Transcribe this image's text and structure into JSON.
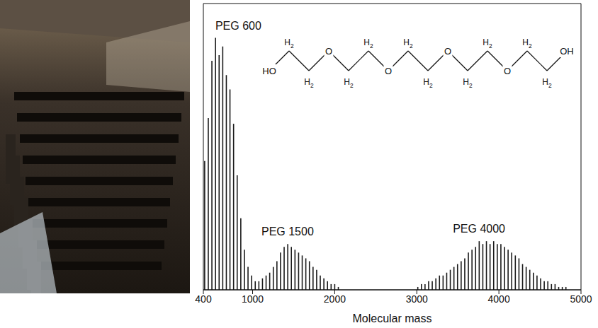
{
  "chart_data": {
    "type": "bar",
    "x_label": "Molecular mass",
    "xlim": [
      400,
      5000
    ],
    "xticks": [
      400,
      1000,
      2000,
      3000,
      4000,
      5000
    ],
    "ylim": [
      0,
      100
    ],
    "tick_labels": "x",
    "series": [
      {
        "name": "PEG 600",
        "color": "#1a1a1a",
        "x": [
          414,
          458,
          502,
          546,
          590,
          634,
          678,
          722,
          766,
          810,
          854,
          898,
          942,
          986,
          1030
        ],
        "values": [
          45,
          60,
          80,
          88,
          82,
          85,
          75,
          70,
          58,
          40,
          25,
          14,
          8,
          5,
          3
        ]
      },
      {
        "name": "PEG 1500",
        "color": "#1a1a1a",
        "x": [
          1074,
          1118,
          1162,
          1206,
          1250,
          1294,
          1338,
          1382,
          1426,
          1470,
          1514,
          1558,
          1602,
          1646,
          1690,
          1734,
          1778,
          1822,
          1866,
          1910,
          1954,
          1998,
          2042
        ],
        "values": [
          3,
          4,
          5,
          6,
          8,
          10,
          13,
          15,
          16,
          15,
          14,
          13,
          12,
          11,
          10,
          8,
          7,
          5,
          4,
          3,
          2,
          2,
          1
        ]
      },
      {
        "name": "PEG 4000",
        "color": "#1a1a1a",
        "x": [
          3010,
          3054,
          3098,
          3142,
          3186,
          3230,
          3274,
          3318,
          3362,
          3406,
          3450,
          3494,
          3538,
          3582,
          3626,
          3670,
          3714,
          3758,
          3802,
          3846,
          3890,
          3934,
          3978,
          4022,
          4066,
          4110,
          4154,
          4198,
          4242,
          4286,
          4330,
          4374,
          4418,
          4462,
          4506,
          4550,
          4594,
          4638,
          4682,
          4726,
          4770,
          4814
        ],
        "values": [
          1,
          2,
          2,
          3,
          3,
          4,
          5,
          5,
          6,
          7,
          8,
          9,
          10,
          11,
          13,
          14,
          15,
          17,
          16,
          17,
          16,
          17,
          16,
          16,
          15,
          14,
          13,
          12,
          11,
          9,
          8,
          7,
          6,
          5,
          4,
          3,
          3,
          2,
          2,
          1,
          1,
          1
        ]
      }
    ]
  },
  "structure": {
    "groups": [
      "HO",
      "H2",
      "H2",
      "O",
      "H2",
      "H2",
      "O",
      "H2",
      "H2",
      "O",
      "H2",
      "H2",
      "O",
      "H2",
      "H2",
      "OH"
    ]
  }
}
